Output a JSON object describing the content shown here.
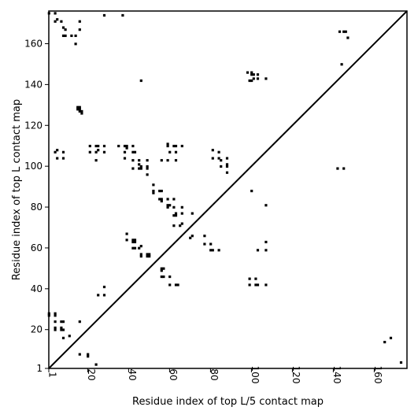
{
  "chart_data": {
    "type": "heatmap",
    "xlabel": "Residue index of top L/5 contact map",
    "ylabel": "Residue index of top L contact map",
    "xlim": [
      1,
      176
    ],
    "ylim": [
      1,
      176
    ],
    "x_ticks": [
      1,
      20,
      40,
      60,
      80,
      100,
      120,
      140,
      160
    ],
    "y_ticks": [
      1,
      20,
      40,
      60,
      80,
      100,
      120,
      140,
      160
    ],
    "diagonal": true,
    "cell_color": "#000000",
    "background_color": "#ffffff",
    "upper_triangle_contacts": [
      [
        1,
        175
      ],
      [
        4,
        175
      ],
      [
        4,
        171
      ],
      [
        5,
        172
      ],
      [
        7,
        171
      ],
      [
        8,
        168
      ],
      [
        9,
        167
      ],
      [
        8,
        164
      ],
      [
        9,
        164
      ],
      [
        12,
        164
      ],
      [
        14,
        164
      ],
      [
        14,
        160
      ],
      [
        16,
        171
      ],
      [
        16,
        167
      ],
      [
        28,
        174
      ],
      [
        37,
        174
      ],
      [
        46,
        142
      ],
      [
        98,
        146
      ],
      [
        100,
        145
      ],
      [
        100,
        146
      ],
      [
        101,
        145
      ],
      [
        103,
        145
      ],
      [
        101,
        143
      ],
      [
        103,
        143
      ],
      [
        99,
        142
      ],
      [
        100,
        142
      ],
      [
        107,
        143
      ],
      [
        143,
        166
      ],
      [
        145,
        166
      ],
      [
        146,
        166
      ],
      [
        144,
        150
      ],
      [
        147,
        163
      ],
      [
        15,
        128
      ],
      [
        16,
        128
      ],
      [
        16,
        127
      ],
      [
        17,
        127
      ],
      [
        15,
        129
      ],
      [
        16,
        129
      ],
      [
        17,
        126
      ],
      [
        4,
        107
      ],
      [
        5,
        108
      ],
      [
        8,
        107
      ],
      [
        5,
        104
      ],
      [
        8,
        104
      ],
      [
        21,
        110
      ],
      [
        21,
        107
      ],
      [
        24,
        110
      ],
      [
        25,
        110
      ],
      [
        24,
        107
      ],
      [
        25,
        108
      ],
      [
        24,
        103
      ],
      [
        28,
        110
      ],
      [
        28,
        107
      ],
      [
        35,
        110
      ],
      [
        38,
        110
      ],
      [
        39,
        110
      ],
      [
        39,
        109
      ],
      [
        42,
        110
      ],
      [
        38,
        107
      ],
      [
        42,
        107
      ],
      [
        43,
        107
      ],
      [
        38,
        104
      ],
      [
        42,
        103
      ],
      [
        42,
        99
      ],
      [
        45,
        103
      ],
      [
        45,
        101
      ],
      [
        46,
        100
      ],
      [
        45,
        99
      ],
      [
        46,
        99
      ],
      [
        49,
        103
      ],
      [
        49,
        100
      ],
      [
        49,
        99
      ],
      [
        49,
        96
      ],
      [
        52,
        91
      ],
      [
        52,
        88
      ],
      [
        52,
        87
      ],
      [
        56,
        103
      ],
      [
        59,
        103
      ],
      [
        59,
        111
      ],
      [
        59,
        110
      ],
      [
        60,
        107
      ],
      [
        62,
        110
      ],
      [
        63,
        110
      ],
      [
        63,
        107
      ],
      [
        63,
        103
      ],
      [
        66,
        110
      ],
      [
        55,
        88
      ],
      [
        56,
        88
      ],
      [
        55,
        84
      ],
      [
        56,
        84
      ],
      [
        56,
        83
      ],
      [
        59,
        84
      ],
      [
        59,
        81
      ],
      [
        60,
        81
      ],
      [
        59,
        80
      ],
      [
        62,
        84
      ],
      [
        62,
        80
      ],
      [
        63,
        77
      ],
      [
        62,
        76
      ],
      [
        63,
        76
      ],
      [
        62,
        71
      ],
      [
        66,
        80
      ],
      [
        66,
        77
      ],
      [
        66,
        72
      ],
      [
        65,
        71
      ],
      [
        71,
        77
      ],
      [
        81,
        108
      ],
      [
        81,
        104
      ],
      [
        84,
        107
      ],
      [
        84,
        104
      ],
      [
        85,
        103
      ],
      [
        85,
        100
      ],
      [
        88,
        104
      ],
      [
        88,
        101
      ],
      [
        88,
        100
      ],
      [
        88,
        97
      ],
      [
        100,
        88
      ],
      [
        107,
        81
      ]
    ],
    "lower_triangle_contacts": [
      [
        1,
        28
      ],
      [
        1,
        27
      ],
      [
        4,
        28
      ],
      [
        4,
        27
      ],
      [
        4,
        24
      ],
      [
        4,
        21
      ],
      [
        4,
        20
      ],
      [
        7,
        24
      ],
      [
        8,
        24
      ],
      [
        7,
        21
      ],
      [
        7,
        20
      ],
      [
        8,
        20
      ],
      [
        11,
        17
      ],
      [
        8,
        16
      ],
      [
        16,
        24
      ],
      [
        16,
        8
      ],
      [
        20,
        8
      ],
      [
        20,
        7
      ],
      [
        24,
        3
      ],
      [
        25,
        37
      ],
      [
        28,
        41
      ],
      [
        28,
        37
      ],
      [
        39,
        67
      ],
      [
        39,
        64
      ],
      [
        42,
        64
      ],
      [
        43,
        64
      ],
      [
        42,
        63
      ],
      [
        43,
        63
      ],
      [
        42,
        60
      ],
      [
        43,
        60
      ],
      [
        45,
        60
      ],
      [
        46,
        61
      ],
      [
        46,
        57
      ],
      [
        46,
        56
      ],
      [
        49,
        57
      ],
      [
        49,
        56
      ],
      [
        50,
        57
      ],
      [
        50,
        56
      ],
      [
        56,
        50
      ],
      [
        57,
        50
      ],
      [
        56,
        49
      ],
      [
        56,
        46
      ],
      [
        57,
        46
      ],
      [
        60,
        46
      ],
      [
        60,
        42
      ],
      [
        63,
        42
      ],
      [
        64,
        42
      ],
      [
        71,
        66
      ],
      [
        70,
        65
      ],
      [
        77,
        66
      ],
      [
        77,
        62
      ],
      [
        80,
        62
      ],
      [
        80,
        59
      ],
      [
        81,
        59
      ],
      [
        84,
        59
      ],
      [
        99,
        45
      ],
      [
        99,
        42
      ],
      [
        102,
        45
      ],
      [
        102,
        42
      ],
      [
        103,
        42
      ],
      [
        107,
        42
      ],
      [
        103,
        59
      ],
      [
        107,
        63
      ],
      [
        107,
        59
      ],
      [
        142,
        99
      ],
      [
        145,
        99
      ],
      [
        165,
        14
      ],
      [
        168,
        16
      ],
      [
        173,
        4
      ]
    ]
  }
}
